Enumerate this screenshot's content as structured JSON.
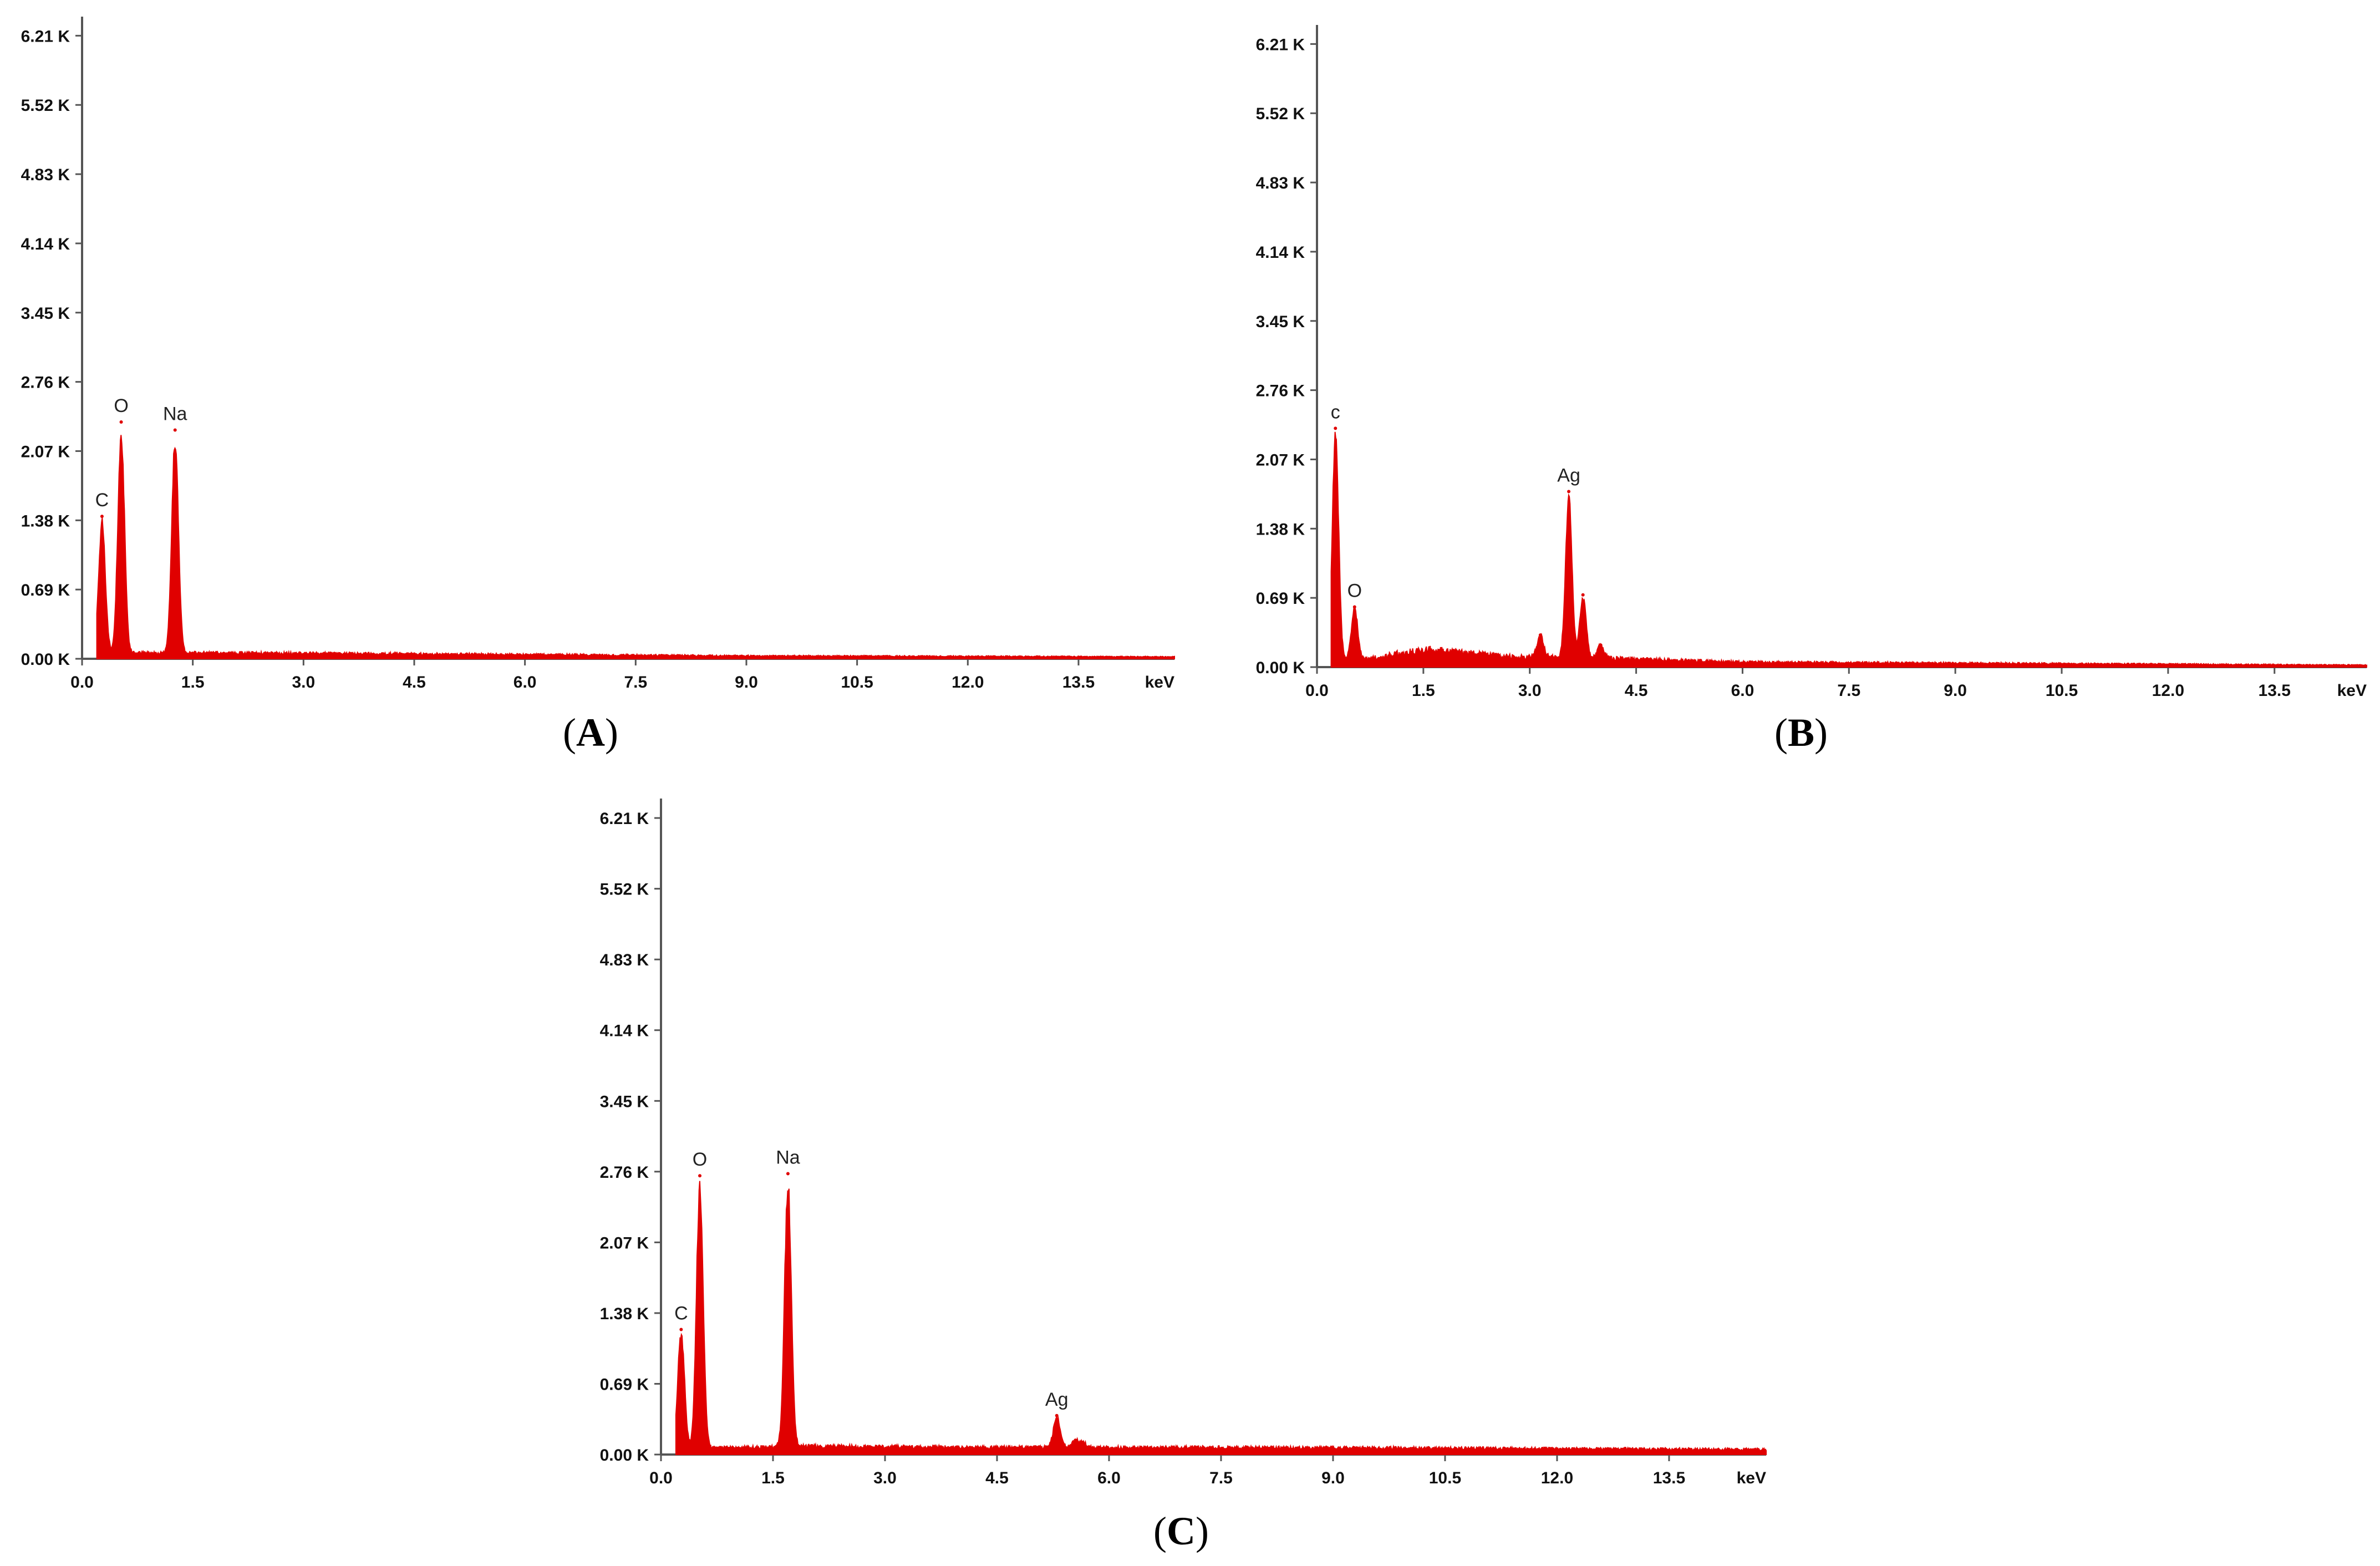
{
  "chart_data": [
    {
      "type": "line",
      "panel_label": "A",
      "xlabel": "keV",
      "xlim": [
        0,
        14.8
      ],
      "ylim": [
        0,
        6.4
      ],
      "x_ticks": [
        "0.0",
        "1.5",
        "3.0",
        "4.5",
        "6.0",
        "7.5",
        "9.0",
        "10.5",
        "12.0",
        "13.5"
      ],
      "y_ticks": [
        "0.00 K",
        "0.69 K",
        "1.38 K",
        "2.07 K",
        "2.76 K",
        "3.45 K",
        "4.14 K",
        "4.83 K",
        "5.52 K",
        "6.21 K"
      ],
      "series": [
        {
          "baseline": [
            [
              0.2,
              0.06
            ],
            [
              1.5,
              0.06
            ],
            [
              4.5,
              0.05
            ],
            [
              9.0,
              0.03
            ],
            [
              14.8,
              0.02
            ]
          ],
          "peaks": [
            {
              "label": "C",
              "x": 0.27,
              "y": 1.42
            },
            {
              "label": "O",
              "x": 0.53,
              "y": 2.36
            },
            {
              "label": "Na",
              "x": 1.26,
              "y": 2.28
            }
          ]
        }
      ],
      "color": "#e00000"
    },
    {
      "type": "line",
      "panel_label": "B",
      "xlabel": "keV",
      "xlim": [
        0,
        14.8
      ],
      "ylim": [
        0,
        6.4
      ],
      "x_ticks": [
        "0.0",
        "1.5",
        "3.0",
        "4.5",
        "6.0",
        "7.5",
        "9.0",
        "10.5",
        "12.0",
        "13.5"
      ],
      "y_ticks": [
        "0.00 K",
        "0.69 K",
        "1.38 K",
        "2.07 K",
        "2.76 K",
        "3.45 K",
        "4.14 K",
        "4.83 K",
        "5.52 K",
        "6.21 K"
      ],
      "series": [
        {
          "baseline": [
            [
              0.2,
              0.06
            ],
            [
              0.7,
              0.08
            ],
            [
              1.2,
              0.14
            ],
            [
              1.6,
              0.17
            ],
            [
              2.1,
              0.14
            ],
            [
              2.8,
              0.1
            ],
            [
              3.4,
              0.1
            ],
            [
              4.5,
              0.08
            ],
            [
              6.0,
              0.05
            ],
            [
              9.0,
              0.04
            ],
            [
              14.8,
              0.02
            ]
          ],
          "peaks": [
            {
              "label": "c",
              "x": 0.26,
              "y": 2.38
            },
            {
              "label": "O",
              "x": 0.53,
              "y": 0.6
            },
            {
              "label": "",
              "x": 3.15,
              "y": 0.32
            },
            {
              "label": "Ag",
              "x": 3.55,
              "y": 1.75
            },
            {
              "label": "",
              "x": 3.75,
              "y": 0.72
            },
            {
              "label": "",
              "x": 4.0,
              "y": 0.22
            }
          ]
        }
      ],
      "color": "#e00000"
    },
    {
      "type": "line",
      "panel_label": "C",
      "xlabel": "keV",
      "xlim": [
        0,
        14.8
      ],
      "ylim": [
        0,
        6.4
      ],
      "x_ticks": [
        "0.0",
        "1.5",
        "3.0",
        "4.5",
        "6.0",
        "7.5",
        "9.0",
        "10.5",
        "12.0",
        "13.5"
      ],
      "y_ticks": [
        "0.00 K",
        "0.69 K",
        "1.38 K",
        "2.07 K",
        "2.76 K",
        "3.45 K",
        "4.14 K",
        "4.83 K",
        "5.52 K",
        "6.21 K"
      ],
      "series": [
        {
          "baseline": [
            [
              0.2,
              0.06
            ],
            [
              2.0,
              0.08
            ],
            [
              4.5,
              0.07
            ],
            [
              7.5,
              0.07
            ],
            [
              14.8,
              0.05
            ]
          ],
          "peaks": [
            {
              "label": "C",
              "x": 0.27,
              "y": 1.22
            },
            {
              "label": "O",
              "x": 0.52,
              "y": 2.72
            },
            {
              "label": "Na",
              "x": 1.7,
              "y": 2.74
            },
            {
              "label": "Ag",
              "x": 5.3,
              "y": 0.38
            },
            {
              "label": "",
              "x": 5.55,
              "y": 0.14
            },
            {
              "label": "",
              "x": 5.65,
              "y": 0.12
            }
          ]
        }
      ],
      "color": "#e00000"
    }
  ]
}
